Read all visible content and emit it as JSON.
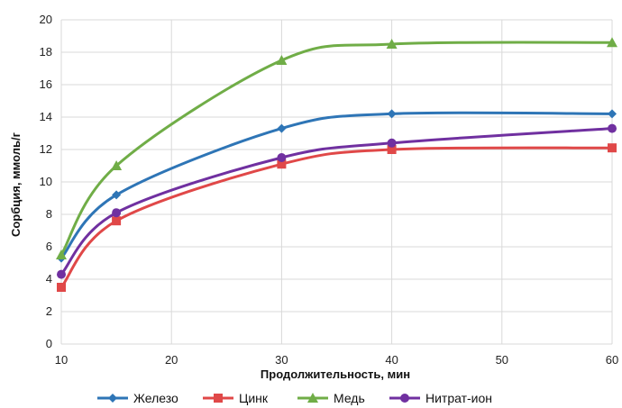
{
  "chart_data": {
    "type": "line",
    "title": "",
    "xlabel": "Продолжительность, мин",
    "ylabel": "Сорбция, ммоль/г",
    "x": [
      10,
      15,
      30,
      40,
      60
    ],
    "xlim": [
      10,
      60
    ],
    "xticks": [
      10,
      20,
      30,
      40,
      50,
      60
    ],
    "ylim": [
      0,
      20
    ],
    "yticks": [
      0,
      2,
      4,
      6,
      8,
      10,
      12,
      14,
      16,
      18,
      20
    ],
    "grid": true,
    "legend_position": "bottom",
    "series": [
      {
        "name": "Железо",
        "color": "#2e75b6",
        "marker": "diamond",
        "values": [
          5.3,
          9.2,
          13.3,
          14.2,
          14.2
        ]
      },
      {
        "name": "Цинк",
        "color": "#e04848",
        "marker": "square",
        "values": [
          3.5,
          7.6,
          11.1,
          12.0,
          12.1
        ]
      },
      {
        "name": "Медь",
        "color": "#70ad47",
        "marker": "triangle",
        "values": [
          5.5,
          11.0,
          17.5,
          18.5,
          18.6
        ]
      },
      {
        "name": "Нитрат-ион",
        "color": "#7030a0",
        "marker": "circle",
        "values": [
          4.3,
          8.1,
          11.5,
          12.4,
          13.3
        ]
      }
    ]
  }
}
